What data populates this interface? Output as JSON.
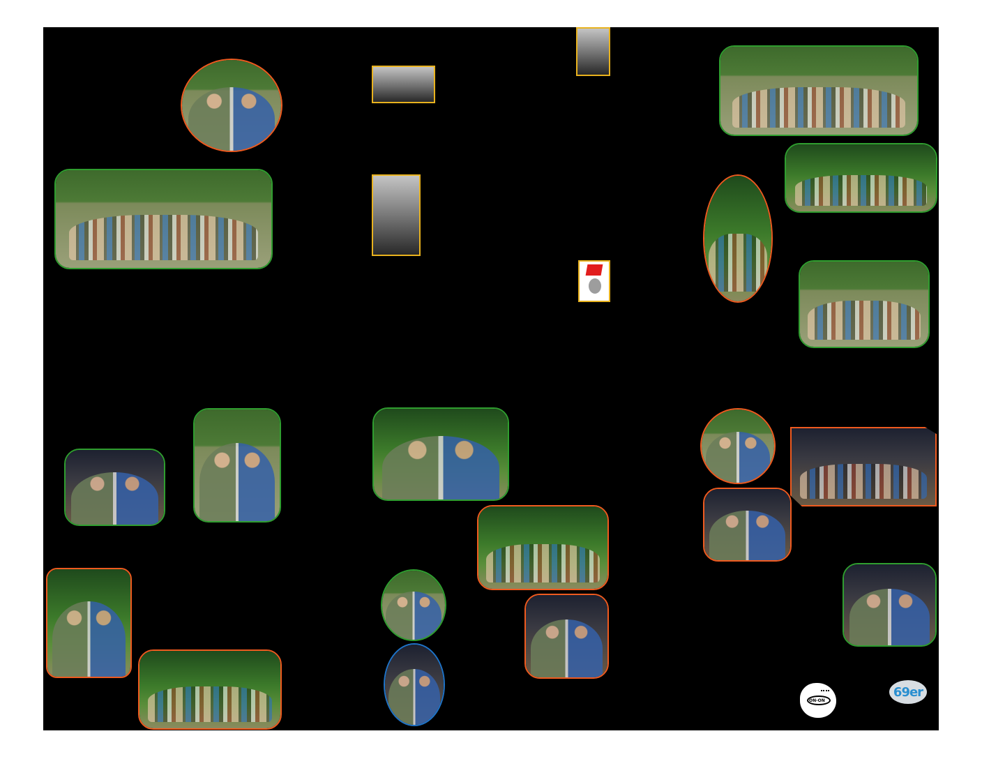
{
  "page": {
    "background": "#000000",
    "margin_color": "#ffffff"
  },
  "border_colors": {
    "green": "#2f9e2f",
    "orange": "#ef5a1f",
    "yellow": "#e8b21e",
    "blue": "#1e73c8"
  },
  "photos": [
    {
      "id": "oval-drinking-group",
      "border": "orange",
      "icon": "group-photo"
    },
    {
      "id": "circle-of-runners-field",
      "border": "green",
      "icon": "group-photo"
    },
    {
      "id": "historic-building-bw",
      "border": "yellow",
      "icon": "archival-photo"
    },
    {
      "id": "portrait-man-bw",
      "border": "yellow",
      "icon": "archival-photo"
    },
    {
      "id": "seated-man-bw",
      "border": "yellow",
      "icon": "archival-photo"
    },
    {
      "id": "poster-thumbnail",
      "border": "yellow",
      "icon": "poster"
    },
    {
      "id": "runners-field-forest",
      "border": "green",
      "icon": "group-photo"
    },
    {
      "id": "jungle-trail-group",
      "border": "green",
      "icon": "trail-photo"
    },
    {
      "id": "oval-jungle-climb",
      "border": "orange",
      "icon": "trail-photo"
    },
    {
      "id": "seated-rest-group",
      "border": "green",
      "icon": "group-photo"
    },
    {
      "id": "three-at-bar",
      "border": "green",
      "icon": "group-photo"
    },
    {
      "id": "bearded-man-table",
      "border": "green",
      "icon": "portrait"
    },
    {
      "id": "group-laughing-forest",
      "border": "green",
      "icon": "group-photo"
    },
    {
      "id": "circle-runner-standing",
      "border": "orange",
      "icon": "portrait"
    },
    {
      "id": "hash-circle-night",
      "border": "orange",
      "icon": "group-photo"
    },
    {
      "id": "group-drinks-night",
      "border": "orange",
      "icon": "group-photo"
    },
    {
      "id": "group-pose-forest",
      "border": "orange",
      "icon": "group-photo"
    },
    {
      "id": "two-men-drinks",
      "border": "orange",
      "icon": "portrait"
    },
    {
      "id": "group-table-beer",
      "border": "orange",
      "icon": "group-photo"
    },
    {
      "id": "oval-man-fez",
      "border": "green",
      "icon": "portrait"
    },
    {
      "id": "oval-pair-night",
      "border": "blue",
      "icon": "portrait"
    },
    {
      "id": "couple-yellow-shirt",
      "border": "orange",
      "icon": "portrait"
    },
    {
      "id": "two-men-night-drink",
      "border": "green",
      "icon": "portrait"
    }
  ],
  "logos": {
    "feet": {
      "label": "ON-ON",
      "icon": "footprint-icon"
    },
    "club": {
      "label": "69er",
      "icon": "club-logo-icon"
    }
  }
}
